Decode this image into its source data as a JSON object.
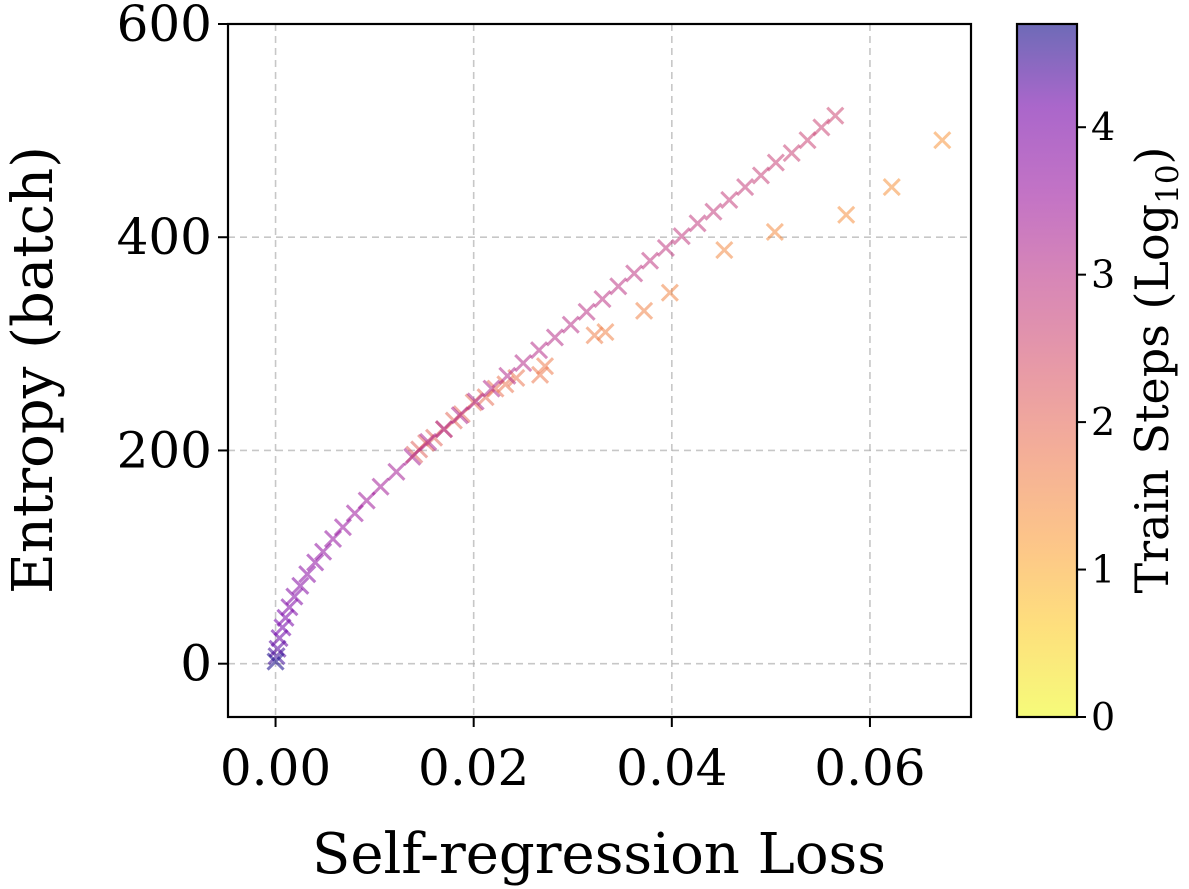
{
  "chart_data": {
    "type": "scatter",
    "title": "",
    "xlabel": "Self-regression Loss",
    "ylabel": "Entropy (batch)",
    "xlim": [
      -0.0048,
      0.0702
    ],
    "ylim": [
      -50,
      600
    ],
    "xticks": [
      0.0,
      0.02,
      0.04,
      0.06
    ],
    "xtick_labels": [
      "0.00",
      "0.02",
      "0.04",
      "0.06"
    ],
    "yticks": [
      0,
      200,
      400,
      600
    ],
    "ytick_labels": [
      "0",
      "200",
      "400",
      "600"
    ],
    "grid": true,
    "marker": "x",
    "colormap": "plasma_r",
    "colorbar": {
      "label_main": "Train Steps (Log",
      "label_sub": "10",
      "label_close": ")",
      "range": [
        0,
        4.7
      ],
      "ticks": [
        0,
        1,
        2,
        3,
        4
      ],
      "tick_labels": [
        "0",
        "1",
        "2",
        "3",
        "4"
      ]
    },
    "series": [
      {
        "x": [
          0.0673,
          0.0622,
          0.0576,
          0.0504,
          0.0453,
          0.0398,
          0.0372,
          0.0333,
          0.0322,
          0.0272,
          0.0267,
          0.0243,
          0.0232,
          0.0222,
          0.0212,
          0.02,
          0.0188,
          0.018,
          0.017,
          0.016,
          0.0152,
          0.0145,
          0.014
        ],
        "y": [
          491,
          447,
          421,
          405,
          388,
          348,
          331,
          311,
          308,
          279,
          271,
          268,
          262,
          258,
          250,
          245,
          234,
          228,
          220,
          212,
          207,
          201,
          196
        ],
        "c": [
          1.3,
          1.35,
          1.4,
          1.45,
          1.5,
          1.55,
          1.6,
          1.6,
          1.65,
          1.7,
          1.75,
          1.8,
          1.8,
          1.85,
          1.9,
          1.9,
          1.95,
          2.0,
          2.0,
          2.05,
          2.1,
          2.1,
          2.15
        ]
      },
      {
        "x": [
          0.0565,
          0.0551,
          0.0537,
          0.0521,
          0.0505,
          0.049,
          0.0474,
          0.0458,
          0.0442,
          0.0426,
          0.041,
          0.0394,
          0.0378,
          0.0362,
          0.0346,
          0.033,
          0.0314,
          0.0298,
          0.0282,
          0.0266,
          0.025,
          0.0234,
          0.0218,
          0.0202,
          0.0186,
          0.017,
          0.0154,
          0.0138,
          0.0122,
          0.0106,
          0.0092,
          0.008,
          0.0068,
          0.0058,
          0.0048,
          0.004,
          0.0032,
          0.0025,
          0.0019,
          0.0014,
          0.001,
          0.0007,
          0.0004,
          0.0002,
          0.0001,
          0.0
        ],
        "y": [
          514,
          503,
          491,
          479,
          470,
          458,
          447,
          435,
          424,
          413,
          401,
          390,
          378,
          366,
          354,
          342,
          330,
          318,
          306,
          294,
          282,
          270,
          258,
          246,
          233,
          220,
          208,
          194,
          180,
          166,
          153,
          141,
          128,
          117,
          105,
          95,
          84,
          73,
          63,
          53,
          43,
          34,
          24,
          14,
          7,
          2
        ],
        "c": [
          2.6,
          2.62,
          2.65,
          2.68,
          2.7,
          2.72,
          2.75,
          2.77,
          2.8,
          2.82,
          2.85,
          2.87,
          2.9,
          2.92,
          2.95,
          2.97,
          3.0,
          3.02,
          3.05,
          3.07,
          3.1,
          3.12,
          3.15,
          3.18,
          3.2,
          3.23,
          3.26,
          3.3,
          3.35,
          3.4,
          3.45,
          3.5,
          3.56,
          3.62,
          3.68,
          3.74,
          3.8,
          3.86,
          3.92,
          3.98,
          4.05,
          4.12,
          4.2,
          4.3,
          4.45,
          4.65
        ]
      }
    ]
  }
}
